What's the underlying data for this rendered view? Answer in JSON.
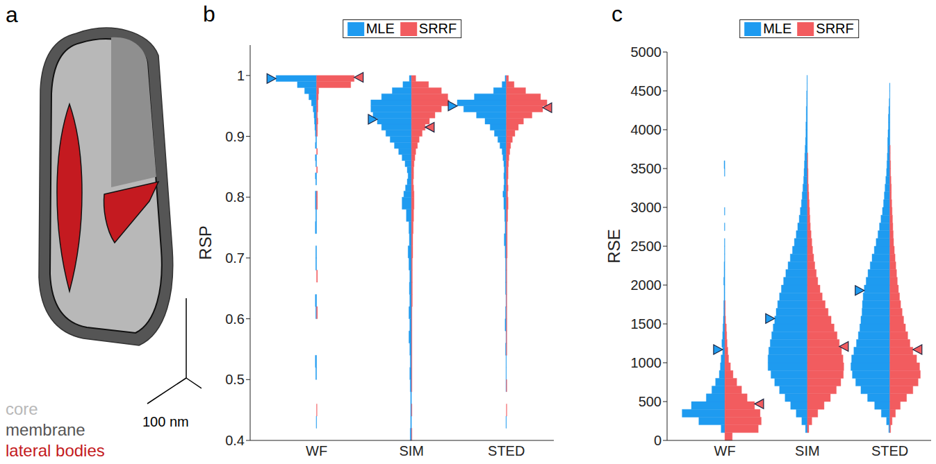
{
  "diagram": {
    "label": "a",
    "scale_bar": "100 nm",
    "parts": [
      {
        "name": "core",
        "color": "#b8b8b8"
      },
      {
        "name": "membrane",
        "color": "#555555"
      },
      {
        "name": "lateral bodies",
        "color": "#c41a20"
      }
    ]
  },
  "chart_data": [
    {
      "label": "b",
      "type": "histogram",
      "orientation": "horizontal",
      "y_label": "RSP",
      "categories": [
        "WF",
        "SIM",
        "STED"
      ],
      "ylim": [
        0.4,
        1.05
      ],
      "yticks": [
        0.4,
        0.5,
        0.6,
        0.7,
        0.8,
        0.9,
        1
      ],
      "legend": "top",
      "bins": [
        0.4,
        0.42,
        0.44,
        0.46,
        0.48,
        0.5,
        0.52,
        0.54,
        0.56,
        0.58,
        0.6,
        0.62,
        0.64,
        0.66,
        0.68,
        0.7,
        0.72,
        0.74,
        0.76,
        0.78,
        0.8,
        0.81,
        0.82,
        0.83,
        0.84,
        0.85,
        0.86,
        0.87,
        0.88,
        0.89,
        0.9,
        0.91,
        0.92,
        0.93,
        0.94,
        0.95,
        0.96,
        0.97,
        0.98,
        0.99,
        1
      ],
      "series": [
        {
          "name": "MLE",
          "color": "#1e9bf0",
          "marker": "triangle",
          "mean": [
            0.995,
            0.928,
            0.95
          ],
          "values": [
            [
              0,
              1,
              0,
              0,
              0,
              2,
              3,
              0,
              0,
              0,
              2,
              3,
              0,
              0,
              2,
              2,
              0,
              3,
              2,
              3,
              3,
              0,
              2,
              3,
              0,
              2,
              3,
              0,
              3,
              2,
              3,
              4,
              5,
              6,
              8,
              12,
              18,
              28,
              45,
              95
            ],
            [
              3,
              2,
              2,
              2,
              3,
              4,
              3,
              4,
              6,
              4,
              6,
              4,
              5,
              4,
              6,
              8,
              5,
              6,
              12,
              22,
              18,
              14,
              10,
              8,
              10,
              15,
              22,
              30,
              40,
              50,
              60,
              70,
              80,
              90,
              95,
              95,
              70,
              45,
              20,
              5
            ],
            [
              0,
              1,
              0,
              0,
              1,
              1,
              1,
              2,
              1,
              3,
              2,
              1,
              2,
              2,
              2,
              3,
              5,
              3,
              4,
              6,
              8,
              6,
              5,
              6,
              5,
              6,
              8,
              10,
              15,
              20,
              28,
              38,
              50,
              70,
              100,
              115,
              75,
              30,
              10,
              3
            ]
          ]
        },
        {
          "name": "SRRF",
          "color": "#f25c5f",
          "marker": "triangle",
          "mean": [
            0.997,
            0.915,
            0.947
          ],
          "values": [
            [
              0,
              0,
              1,
              0,
              0,
              0,
              0,
              0,
              0,
              0,
              2,
              0,
              0,
              2,
              0,
              0,
              0,
              0,
              0,
              2,
              2,
              0,
              0,
              0,
              2,
              0,
              0,
              2,
              0,
              0,
              2,
              2,
              3,
              2,
              3,
              3,
              4,
              5,
              80,
              88
            ],
            [
              1,
              0,
              1,
              0,
              1,
              1,
              1,
              1,
              1,
              1,
              1,
              2,
              2,
              2,
              2,
              3,
              3,
              4,
              5,
              6,
              6,
              5,
              4,
              5,
              5,
              6,
              8,
              10,
              14,
              18,
              25,
              32,
              42,
              55,
              70,
              88,
              85,
              70,
              40,
              10
            ],
            [
              0,
              0,
              1,
              0,
              1,
              0,
              0,
              1,
              1,
              1,
              1,
              1,
              1,
              1,
              1,
              2,
              2,
              2,
              3,
              4,
              3,
              4,
              3,
              4,
              4,
              5,
              6,
              8,
              10,
              14,
              20,
              28,
              40,
              60,
              85,
              95,
              80,
              45,
              18,
              5
            ]
          ]
        }
      ]
    },
    {
      "label": "c",
      "type": "histogram",
      "orientation": "horizontal",
      "y_label": "RSE",
      "categories": [
        "WF",
        "SIM",
        "STED"
      ],
      "ylim": [
        0,
        5000
      ],
      "yticks": [
        0,
        500,
        1000,
        1500,
        2000,
        2500,
        3000,
        3500,
        4000,
        4500,
        5000
      ],
      "legend": "top",
      "bins": [
        0,
        100,
        200,
        300,
        400,
        500,
        600,
        700,
        800,
        900,
        1000,
        1100,
        1200,
        1300,
        1400,
        1500,
        1600,
        1700,
        1800,
        1900,
        2000,
        2100,
        2200,
        2300,
        2400,
        2500,
        2600,
        2700,
        2800,
        2900,
        3000,
        3100,
        3200,
        3300,
        3400,
        3500,
        3600,
        3700,
        3800,
        3900,
        4000,
        4100,
        4200,
        4300,
        4400,
        4500,
        4600,
        4700,
        4800,
        4900,
        5000
      ],
      "series": [
        {
          "name": "MLE",
          "color": "#1e9bf0",
          "marker": "triangle",
          "mean": [
            1170,
            1570,
            1930
          ],
          "values": [
            [
              0,
              10,
              70,
              115,
              90,
              50,
              35,
              25,
              15,
              12,
              10,
              6,
              8,
              6,
              5,
              4,
              3,
              3,
              2,
              2,
              3,
              2,
              2,
              1,
              1,
              1,
              0,
              1,
              0,
              1,
              0,
              0,
              0,
              0,
              1,
              2,
              0,
              0,
              0,
              0,
              0,
              0,
              0,
              0,
              0,
              0,
              0,
              0,
              0,
              0
            ],
            [
              0,
              5,
              15,
              30,
              45,
              60,
              75,
              88,
              98,
              106,
              106,
              104,
              100,
              96,
              92,
              88,
              84,
              80,
              75,
              70,
              64,
              58,
              52,
              46,
              40,
              35,
              30,
              26,
              22,
              19,
              16,
              14,
              12,
              10,
              9,
              8,
              7,
              6,
              5,
              4,
              4,
              3,
              3,
              2,
              2,
              1,
              1,
              0,
              0,
              0
            ],
            [
              0,
              3,
              9,
              23,
              41,
              60,
              78,
              92,
              101,
              105,
              103,
              97,
              90,
              85,
              81,
              78,
              75,
              74,
              72,
              69,
              64,
              59,
              53,
              48,
              42,
              37,
              32,
              28,
              24,
              20,
              17,
              15,
              13,
              11,
              9,
              8,
              7,
              6,
              6,
              5,
              4,
              4,
              3,
              2,
              1,
              1,
              0,
              0,
              0,
              0
            ]
          ]
        },
        {
          "name": "SRRF",
          "color": "#f25c5f",
          "marker": "triangle",
          "mean": [
            470,
            1210,
            1170
          ],
          "values": [
            [
              20,
              90,
              98,
              95,
              80,
              60,
              45,
              32,
              22,
              15,
              10,
              8,
              6,
              5,
              4,
              2,
              1,
              1,
              0,
              0,
              0,
              0,
              0,
              0,
              0,
              0,
              0,
              0,
              0,
              0,
              0,
              0,
              0,
              0,
              0,
              0,
              0,
              0,
              0,
              0,
              0,
              0,
              0,
              0,
              0,
              0,
              0,
              0,
              0,
              0
            ],
            [
              0,
              4,
              12,
              28,
              45,
              62,
              78,
              90,
              97,
              98,
              96,
              92,
              86,
              80,
              72,
              64,
              56,
              48,
              40,
              34,
              28,
              24,
              20,
              17,
              14,
              12,
              10,
              8,
              7,
              6,
              5,
              4,
              3,
              2,
              2,
              1,
              1,
              0,
              0,
              0,
              0,
              0,
              0,
              0,
              0,
              0,
              0,
              0,
              0,
              0
            ],
            [
              0,
              2,
              6,
              15,
              28,
              45,
              62,
              76,
              82,
              80,
              72,
              62,
              54,
              48,
              42,
              37,
              33,
              29,
              26,
              23,
              20,
              18,
              16,
              14,
              12,
              10,
              9,
              8,
              7,
              6,
              5,
              4,
              4,
              3,
              2,
              2,
              1,
              1,
              0,
              0,
              0,
              0,
              0,
              0,
              0,
              0,
              0,
              0,
              0,
              0
            ]
          ]
        }
      ]
    }
  ]
}
